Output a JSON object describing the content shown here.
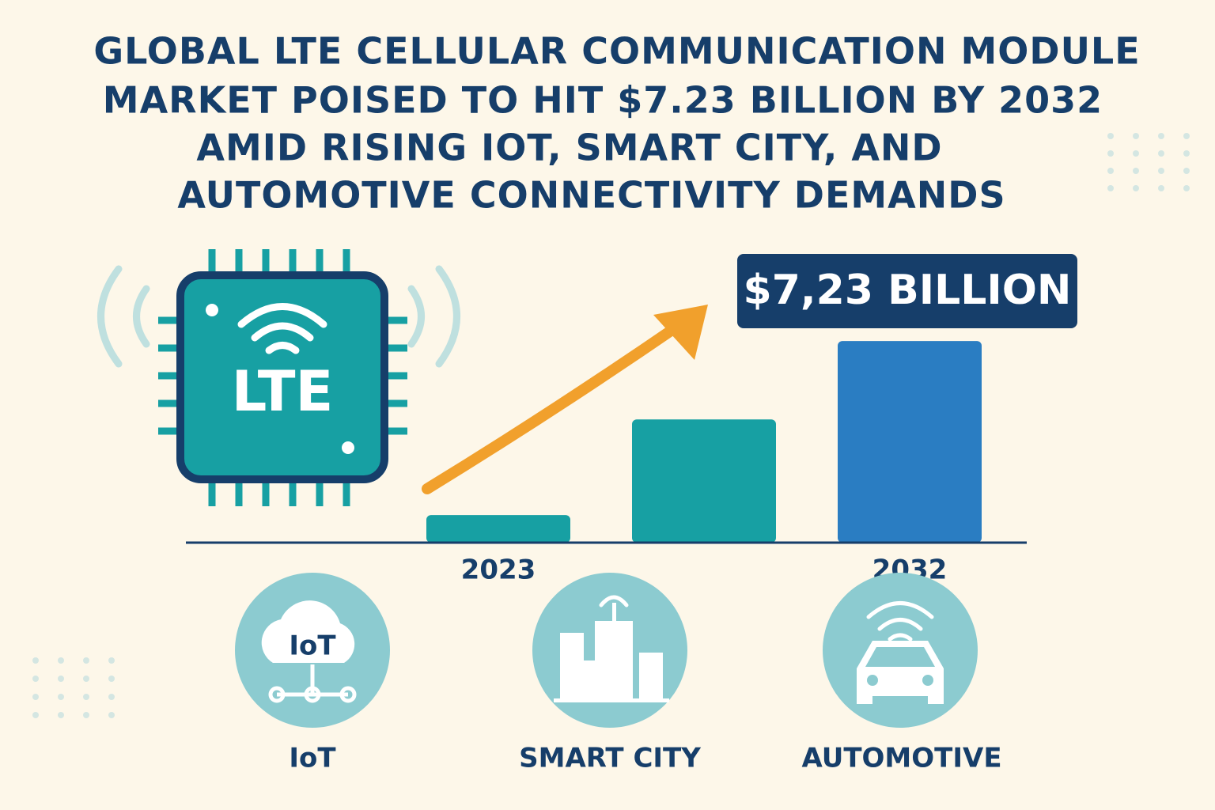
{
  "chart_data": {
    "type": "bar",
    "title": [
      "GLOBAL LTE CELLULAR COMMUNICATION MODULE",
      "MARKET POISED TO HIT $7.23 BILLION BY 2032",
      "AMID RISING IOT, SMART CITY, AND",
      "AUTOMOTIVE CONNECTIVITY DEMANDS"
    ],
    "categories": [
      "2023",
      null,
      "2032"
    ],
    "values": [
      0.99,
      4.42,
      7.23
    ],
    "value_labels": [
      null,
      null,
      "$7,23 BILLION"
    ],
    "colors": [
      "#17a0a3",
      "#17a0a3",
      "#2a7dc2"
    ],
    "ylim": [
      0,
      8
    ]
  },
  "chip_label": "LTE",
  "cloud_label": "IoT",
  "sectors": [
    "IoT",
    "SMART CITY",
    "AUTOMOTIVE"
  ]
}
